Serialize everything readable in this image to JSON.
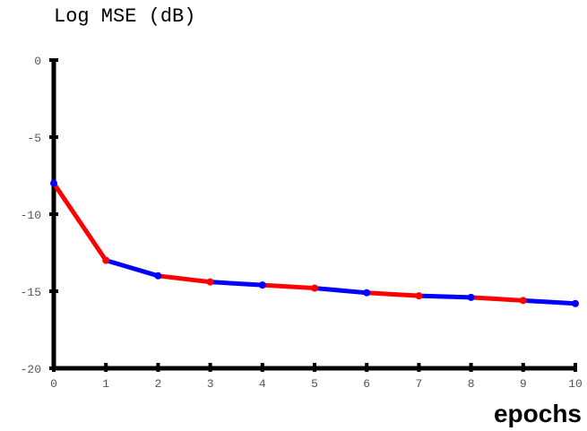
{
  "chart_data": {
    "type": "line",
    "title": "",
    "ylabel": "Log MSE (dB)",
    "xlabel": "epochs",
    "xlim": [
      0,
      10
    ],
    "ylim": [
      -20,
      0
    ],
    "x_ticks": [
      "0",
      "1",
      "2",
      "3",
      "4",
      "5",
      "6",
      "7",
      "8",
      "9",
      "10"
    ],
    "y_ticks": [
      "0",
      "-5",
      "-10",
      "-15",
      "-20"
    ],
    "grid": false,
    "legend": "none",
    "x": [
      0,
      1,
      2,
      3,
      4,
      5,
      6,
      7,
      8,
      9,
      10
    ],
    "series": [
      {
        "values": [
          -8.0,
          -13.0,
          -14.0,
          -14.4,
          -14.6,
          -14.8,
          -15.1,
          -15.3,
          -15.4,
          -15.6,
          -15.8
        ]
      }
    ],
    "colors": {
      "segment_a": "#ff0000",
      "segment_b": "#0000ff",
      "axis": "#000000"
    }
  }
}
